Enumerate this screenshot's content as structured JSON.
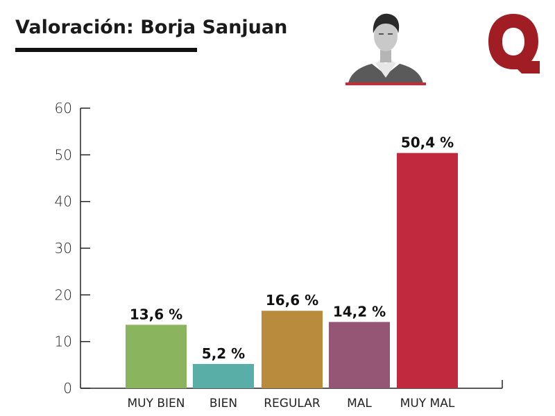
{
  "header": {
    "title": "Valoración: Borja Sanjuan",
    "portrait_icon": "person-portrait-grayscale",
    "logo_icon": "brand-q-logo",
    "logo_color": "#a11d24",
    "portrait_bar_color": "#c92a38"
  },
  "chart_data": {
    "type": "bar",
    "title": "",
    "xlabel": "",
    "ylabel": "",
    "ylim": [
      0,
      60
    ],
    "yticks": [
      0,
      10,
      20,
      30,
      40,
      50,
      60
    ],
    "grid": false,
    "categories": [
      "MUY BIEN",
      "BIEN",
      "REGULAR",
      "MAL",
      "MUY MAL"
    ],
    "values": [
      13.6,
      5.2,
      16.6,
      14.2,
      50.4
    ],
    "data_labels": [
      "13,6 %",
      "5,2 %",
      "16,6 %",
      "14,2 %",
      "50,4 %"
    ],
    "colors": [
      "#8ab45d",
      "#5aaea8",
      "#b98b3c",
      "#955676",
      "#c12a3e"
    ]
  }
}
